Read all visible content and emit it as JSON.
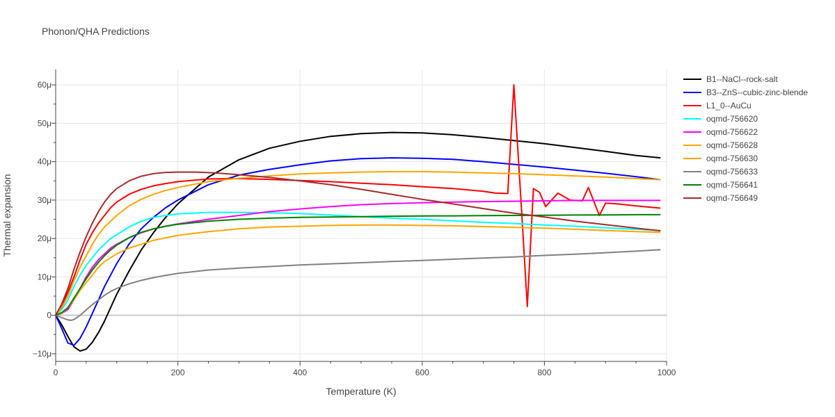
{
  "chart_data": {
    "type": "line",
    "title": "Phonon/QHA Predictions",
    "xlabel": "Temperature (K)",
    "ylabel": "Thermal expansion",
    "xlim": [
      0,
      1000
    ],
    "ylim": [
      -12,
      64
    ],
    "x_ticks": [
      0,
      200,
      400,
      600,
      800,
      1000
    ],
    "x_tick_labels": [
      "0",
      "200",
      "400",
      "600",
      "800",
      "1000"
    ],
    "y_ticks": [
      -10,
      0,
      10,
      20,
      30,
      40,
      50,
      60
    ],
    "y_tick_labels": [
      "−10μ",
      "0",
      "10μ",
      "20μ",
      "30μ",
      "40μ",
      "50μ",
      "60μ"
    ],
    "y_unit": "1e-6 per K (shown with μ suffix)",
    "grid": true,
    "legend_position": "top-right outside plot",
    "series": [
      {
        "name": "B1--NaCl--rock-salt",
        "color": "#000000",
        "x": [
          0,
          10,
          20,
          30,
          40,
          50,
          60,
          70,
          80,
          90,
          100,
          120,
          140,
          160,
          180,
          200,
          250,
          300,
          350,
          400,
          450,
          500,
          550,
          600,
          650,
          700,
          750,
          800,
          850,
          900,
          950,
          990
        ],
        "y": [
          0,
          -2.5,
          -5.5,
          -8.2,
          -9.3,
          -8.8,
          -7,
          -4.5,
          -1.5,
          2,
          5.5,
          11.5,
          17,
          21.5,
          25.5,
          29,
          36,
          40.5,
          43.5,
          45.3,
          46.6,
          47.3,
          47.6,
          47.5,
          47,
          46.3,
          45.5,
          44.7,
          43.7,
          42.7,
          41.6,
          41
        ]
      },
      {
        "name": "B3--ZnS--cubic-zinc-blende",
        "color": "#0000ff",
        "x": [
          0,
          10,
          20,
          30,
          40,
          50,
          60,
          70,
          80,
          90,
          100,
          120,
          140,
          160,
          180,
          200,
          250,
          300,
          350,
          400,
          450,
          500,
          550,
          600,
          650,
          700,
          750,
          800,
          850,
          900,
          950,
          990
        ],
        "y": [
          0,
          -3.5,
          -7.2,
          -7.8,
          -6,
          -3,
          0.5,
          4,
          7.5,
          10.5,
          13.5,
          18.5,
          22.5,
          25.5,
          28,
          30,
          34,
          36.5,
          38,
          39.2,
          40.2,
          40.8,
          41,
          40.9,
          40.6,
          40,
          39.3,
          38.6,
          37.8,
          37,
          36.1,
          35.3
        ]
      },
      {
        "name": "L1_0--AuCu",
        "color": "#ff0000",
        "x": [
          0,
          10,
          20,
          30,
          40,
          50,
          60,
          70,
          80,
          90,
          100,
          120,
          140,
          160,
          180,
          200,
          250,
          300,
          350,
          400,
          450,
          500,
          550,
          600,
          650,
          700,
          720,
          740,
          750,
          762,
          772,
          782,
          792,
          802,
          822,
          842,
          862,
          872,
          890,
          900,
          920,
          950,
          990
        ],
        "y": [
          0,
          2.5,
          6,
          10,
          14.5,
          18.5,
          21.5,
          24,
          26,
          28,
          29.5,
          31.5,
          32.8,
          33.7,
          34.3,
          34.8,
          35.5,
          35.6,
          35.4,
          35.1,
          34.8,
          34.4,
          34,
          33.5,
          33,
          32.3,
          31.8,
          31.7,
          60,
          29,
          2.3,
          33,
          32,
          28.3,
          31.8,
          30,
          29.8,
          33.3,
          26,
          29.2,
          29,
          28.5,
          27.9
        ]
      },
      {
        "name": "oqmd-756620",
        "color": "#00ffff",
        "x": [
          0,
          10,
          20,
          30,
          40,
          50,
          60,
          70,
          80,
          90,
          100,
          120,
          140,
          160,
          180,
          200,
          250,
          300,
          350,
          400,
          450,
          500,
          550,
          600,
          650,
          700,
          750,
          800,
          850,
          900,
          950,
          990
        ],
        "y": [
          0,
          1.5,
          4,
          7.5,
          10.5,
          13,
          15,
          17,
          18.5,
          20,
          21,
          23,
          24.5,
          25.5,
          26,
          26.4,
          26.8,
          26.8,
          26.7,
          26.5,
          26.1,
          25.7,
          25.3,
          25,
          24.6,
          24.2,
          23.9,
          23.5,
          23.2,
          22.8,
          22.4,
          22.1
        ]
      },
      {
        "name": "oqmd-756622",
        "color": "#ff00ff",
        "x": [
          0,
          10,
          20,
          30,
          40,
          50,
          60,
          70,
          80,
          90,
          100,
          120,
          140,
          160,
          180,
          200,
          250,
          300,
          350,
          400,
          450,
          500,
          550,
          600,
          650,
          700,
          750,
          800,
          850,
          900,
          950,
          990
        ],
        "y": [
          0,
          0.5,
          1.5,
          4,
          7,
          10,
          12.5,
          14.5,
          16,
          17.5,
          18.5,
          20.2,
          21.5,
          22.5,
          23.2,
          23.8,
          25,
          26,
          27,
          27.7,
          28.3,
          28.8,
          29.1,
          29.3,
          29.5,
          29.6,
          29.7,
          29.8,
          29.9,
          29.9,
          29.9,
          29.9
        ]
      },
      {
        "name": "oqmd-756628",
        "color": "#ffa500",
        "x": [
          0,
          10,
          20,
          30,
          40,
          50,
          60,
          70,
          80,
          90,
          100,
          120,
          140,
          160,
          180,
          200,
          250,
          300,
          350,
          400,
          450,
          500,
          550,
          600,
          650,
          700,
          750,
          800,
          850,
          900,
          950,
          990
        ],
        "y": [
          0,
          0.5,
          2,
          4,
          6.5,
          8.5,
          10.5,
          12.5,
          14,
          15,
          16,
          17.5,
          18.5,
          19.5,
          20.2,
          20.8,
          21.8,
          22.5,
          23,
          23.2,
          23.4,
          23.5,
          23.5,
          23.4,
          23.3,
          23.1,
          22.9,
          22.7,
          22.4,
          22.1,
          21.8,
          21.6
        ]
      },
      {
        "name": "oqmd-756630",
        "color": "#ffa500",
        "x": [
          0,
          10,
          20,
          30,
          40,
          50,
          60,
          70,
          80,
          90,
          100,
          120,
          140,
          160,
          180,
          200,
          250,
          300,
          350,
          400,
          450,
          500,
          550,
          600,
          650,
          700,
          750,
          800,
          850,
          900,
          950,
          990
        ],
        "y": [
          0,
          2,
          5,
          9,
          12.5,
          15.5,
          18.5,
          21,
          23,
          24.5,
          26,
          28.5,
          30.2,
          31.5,
          32.5,
          33.3,
          34.8,
          35.7,
          36.3,
          36.8,
          37.1,
          37.3,
          37.4,
          37.4,
          37.3,
          37.1,
          36.9,
          36.6,
          36.3,
          36,
          35.6,
          35.3
        ]
      },
      {
        "name": "oqmd-756633",
        "color": "#808080",
        "x": [
          0,
          10,
          20,
          25,
          30,
          40,
          50,
          60,
          70,
          80,
          90,
          100,
          120,
          140,
          160,
          180,
          200,
          250,
          300,
          350,
          400,
          450,
          500,
          550,
          600,
          650,
          700,
          750,
          800,
          850,
          900,
          950,
          990
        ],
        "y": [
          0,
          -0.6,
          -1.2,
          -1.3,
          -1.1,
          0,
          1.4,
          2.8,
          4,
          5.2,
          6.2,
          7,
          8.2,
          9.1,
          9.8,
          10.4,
          10.9,
          11.8,
          12.3,
          12.7,
          13.1,
          13.4,
          13.7,
          14,
          14.3,
          14.6,
          14.9,
          15.2,
          15.6,
          15.9,
          16.3,
          16.7,
          17.1
        ]
      },
      {
        "name": "oqmd-756641",
        "color": "#008000",
        "x": [
          0,
          10,
          20,
          30,
          40,
          50,
          60,
          70,
          80,
          90,
          100,
          120,
          140,
          160,
          180,
          200,
          250,
          300,
          350,
          400,
          450,
          500,
          550,
          600,
          650,
          700,
          750,
          800,
          850,
          900,
          950,
          990
        ],
        "y": [
          0,
          0.7,
          2,
          4.5,
          7,
          9.5,
          11.8,
          13.8,
          15.5,
          17,
          18.3,
          20.2,
          21.6,
          22.5,
          23.2,
          23.7,
          24.5,
          25,
          25.3,
          25.5,
          25.6,
          25.7,
          25.8,
          25.85,
          25.9,
          25.95,
          26,
          26.05,
          26.1,
          26.15,
          26.2,
          26.2
        ]
      },
      {
        "name": "oqmd-756649",
        "color": "#a52a2a",
        "x": [
          0,
          10,
          20,
          30,
          40,
          50,
          60,
          70,
          80,
          90,
          100,
          120,
          140,
          160,
          180,
          200,
          230,
          260,
          300,
          350,
          400,
          450,
          500,
          550,
          600,
          650,
          700,
          750,
          800,
          850,
          900,
          950,
          990
        ],
        "y": [
          0,
          3,
          7,
          12,
          16.5,
          20.5,
          24,
          27,
          29.5,
          31.5,
          33,
          35,
          36.2,
          36.9,
          37.2,
          37.3,
          37.3,
          37.1,
          36.6,
          35.9,
          35,
          34,
          32.8,
          31.5,
          30.2,
          29,
          27.8,
          26.6,
          25.6,
          24.5,
          23.6,
          22.7,
          22
        ]
      }
    ]
  }
}
